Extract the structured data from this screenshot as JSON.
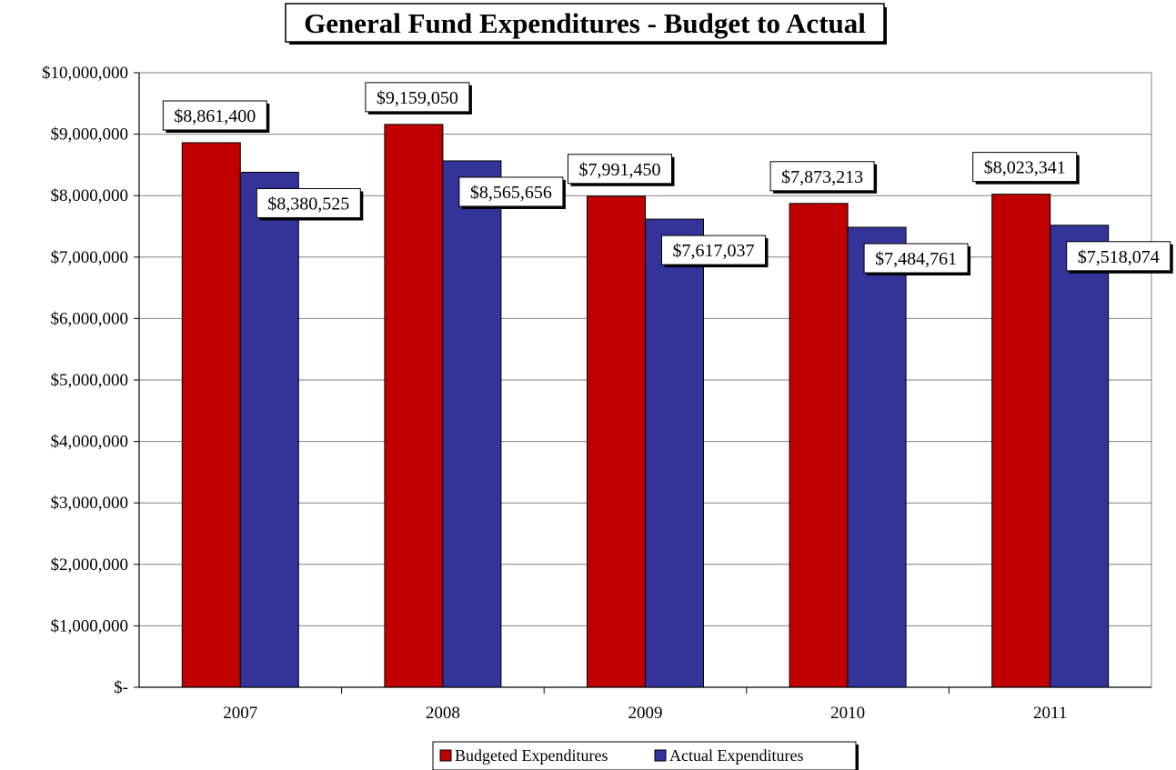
{
  "chart_data": {
    "type": "bar",
    "title": "General Fund Expenditures - Budget to Actual",
    "categories": [
      "2007",
      "2008",
      "2009",
      "2010",
      "2011"
    ],
    "series": [
      {
        "name": "Budgeted Expenditures",
        "color": "#c00000",
        "values": [
          8861400,
          9159050,
          7991450,
          7873213,
          8023341
        ],
        "labels": [
          "$8,861,400",
          "$9,159,050",
          "$7,991,450",
          "$7,873,213",
          "$8,023,341"
        ]
      },
      {
        "name": "Actual Expenditures",
        "color": "#333399",
        "values": [
          8380525,
          8565656,
          7617037,
          7484761,
          7518074
        ],
        "labels": [
          "$8,380,525",
          "$8,565,656",
          "$7,617,037",
          "$7,484,761",
          "$7,518,074"
        ]
      }
    ],
    "ylim": [
      0,
      10000000
    ],
    "yticks": [
      {
        "value": 0,
        "label": "$-"
      },
      {
        "value": 1000000,
        "label": "$1,000,000"
      },
      {
        "value": 2000000,
        "label": "$2,000,000"
      },
      {
        "value": 3000000,
        "label": "$3,000,000"
      },
      {
        "value": 4000000,
        "label": "$4,000,000"
      },
      {
        "value": 5000000,
        "label": "$5,000,000"
      },
      {
        "value": 6000000,
        "label": "$6,000,000"
      },
      {
        "value": 7000000,
        "label": "$7,000,000"
      },
      {
        "value": 8000000,
        "label": "$8,000,000"
      },
      {
        "value": 9000000,
        "label": "$9,000,000"
      },
      {
        "value": 10000000,
        "label": "$10,000,000"
      }
    ],
    "grid": true,
    "legend_position": "bottom",
    "xlabel": "",
    "ylabel": ""
  }
}
